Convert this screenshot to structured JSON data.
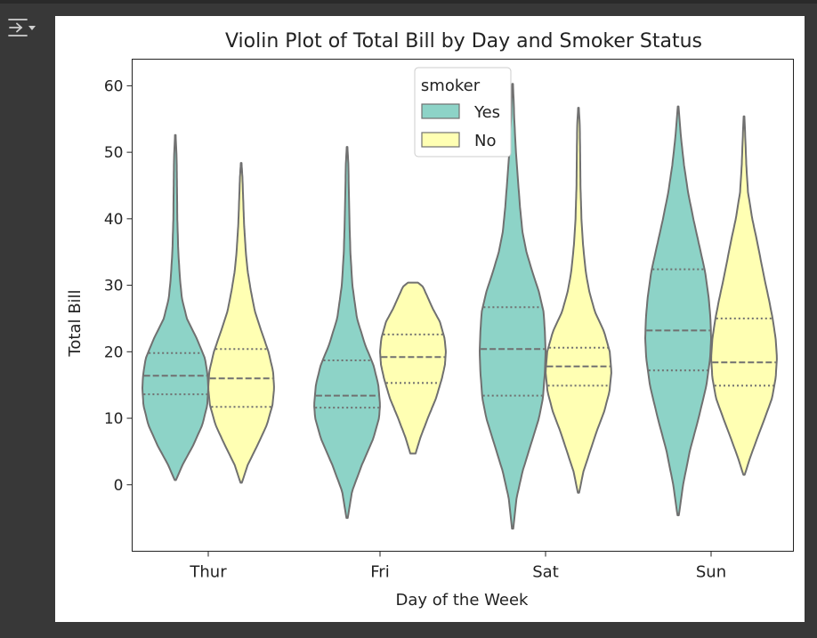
{
  "output_toggle": {
    "icon": "output-collapse-icon"
  },
  "colors": {
    "yes": "#8dd3c7",
    "no": "#ffffb3",
    "edge": "#707070",
    "page_bg": "#383838"
  },
  "chart_data": {
    "type": "violin",
    "title": "Violin Plot of Total Bill by Day and Smoker Status",
    "xlabel": "Day of the Week",
    "ylabel": "Total Bill",
    "categories": [
      "Thur",
      "Fri",
      "Sat",
      "Sun"
    ],
    "ylim": [
      -10,
      64
    ],
    "yticks": [
      0,
      10,
      20,
      30,
      40,
      50,
      60
    ],
    "grid": false,
    "legend": {
      "title": "smoker",
      "position": "upper-center"
    },
    "series": [
      {
        "name": "Yes",
        "color": "#8dd3c7",
        "violins": [
          {
            "category": "Thur",
            "min": 0.7,
            "max": 52.6,
            "q1": 13.6,
            "median": 16.4,
            "q3": 19.8,
            "profile": [
              [
                0.7,
                0.02
              ],
              [
                3,
                0.22
              ],
              [
                6,
                0.55
              ],
              [
                9,
                0.82
              ],
              [
                12,
                0.97
              ],
              [
                14.5,
                1.0
              ],
              [
                16.5,
                0.98
              ],
              [
                19,
                0.9
              ],
              [
                22,
                0.65
              ],
              [
                25,
                0.35
              ],
              [
                28,
                0.2
              ],
              [
                31,
                0.14
              ],
              [
                35,
                0.09
              ],
              [
                40,
                0.06
              ],
              [
                45,
                0.05
              ],
              [
                49,
                0.04
              ],
              [
                52.6,
                0.01
              ]
            ]
          },
          {
            "category": "Fri",
            "min": -5,
            "max": 50.8,
            "q1": 11.6,
            "median": 13.4,
            "q3": 18.7,
            "profile": [
              [
                -5,
                0.02
              ],
              [
                -1,
                0.15
              ],
              [
                3,
                0.45
              ],
              [
                7,
                0.8
              ],
              [
                10,
                0.97
              ],
              [
                12,
                1.0
              ],
              [
                15,
                0.95
              ],
              [
                18,
                0.8
              ],
              [
                21,
                0.55
              ],
              [
                25,
                0.3
              ],
              [
                30,
                0.16
              ],
              [
                35,
                0.1
              ],
              [
                40,
                0.07
              ],
              [
                45,
                0.05
              ],
              [
                48,
                0.04
              ],
              [
                50.8,
                0.01
              ]
            ]
          },
          {
            "category": "Sat",
            "min": -6.6,
            "max": 60.3,
            "q1": 13.4,
            "median": 20.4,
            "q3": 26.7,
            "profile": [
              [
                -6.6,
                0.02
              ],
              [
                -2,
                0.12
              ],
              [
                2,
                0.3
              ],
              [
                6,
                0.55
              ],
              [
                10,
                0.8
              ],
              [
                13,
                0.92
              ],
              [
                17,
                0.98
              ],
              [
                20,
                1.0
              ],
              [
                23,
                0.98
              ],
              [
                26,
                0.94
              ],
              [
                29,
                0.8
              ],
              [
                32,
                0.6
              ],
              [
                35,
                0.42
              ],
              [
                38,
                0.3
              ],
              [
                42,
                0.22
              ],
              [
                46,
                0.16
              ],
              [
                50,
                0.1
              ],
              [
                55,
                0.05
              ],
              [
                58,
                0.03
              ],
              [
                60.3,
                0.01
              ]
            ]
          },
          {
            "category": "Sun",
            "min": -4.6,
            "max": 56.9,
            "q1": 17.2,
            "median": 23.2,
            "q3": 32.4,
            "profile": [
              [
                -4.6,
                0.02
              ],
              [
                0,
                0.15
              ],
              [
                5,
                0.35
              ],
              [
                10,
                0.62
              ],
              [
                15,
                0.86
              ],
              [
                19,
                0.97
              ],
              [
                22,
                1.0
              ],
              [
                25,
                0.98
              ],
              [
                28,
                0.93
              ],
              [
                32,
                0.82
              ],
              [
                36,
                0.64
              ],
              [
                40,
                0.46
              ],
              [
                44,
                0.3
              ],
              [
                48,
                0.18
              ],
              [
                52,
                0.09
              ],
              [
                55,
                0.04
              ],
              [
                56.9,
                0.01
              ]
            ]
          }
        ]
      },
      {
        "name": "No",
        "color": "#ffffb3",
        "violins": [
          {
            "category": "Thur",
            "min": 0.3,
            "max": 48.4,
            "q1": 11.7,
            "median": 16.0,
            "q3": 20.4,
            "profile": [
              [
                0.3,
                0.02
              ],
              [
                3,
                0.2
              ],
              [
                6,
                0.5
              ],
              [
                9,
                0.78
              ],
              [
                12,
                0.95
              ],
              [
                14.5,
                1.0
              ],
              [
                17,
                0.97
              ],
              [
                20,
                0.83
              ],
              [
                23,
                0.62
              ],
              [
                26,
                0.42
              ],
              [
                29,
                0.3
              ],
              [
                32,
                0.2
              ],
              [
                35,
                0.14
              ],
              [
                39,
                0.09
              ],
              [
                43,
                0.06
              ],
              [
                46,
                0.04
              ],
              [
                48.4,
                0.01
              ]
            ]
          },
          {
            "category": "Fri",
            "min": 4.7,
            "max": 30.4,
            "q1": 15.3,
            "median": 19.2,
            "q3": 22.6,
            "profile": [
              [
                4.7,
                0.08
              ],
              [
                7,
                0.22
              ],
              [
                10,
                0.45
              ],
              [
                13,
                0.7
              ],
              [
                16,
                0.88
              ],
              [
                18,
                0.97
              ],
              [
                20,
                1.0
              ],
              [
                22,
                0.96
              ],
              [
                24.5,
                0.82
              ],
              [
                26.5,
                0.6
              ],
              [
                28.5,
                0.42
              ],
              [
                29.8,
                0.3
              ],
              [
                30.4,
                0.15
              ]
            ]
          },
          {
            "category": "Sat",
            "min": -1.2,
            "max": 56.7,
            "q1": 14.9,
            "median": 17.8,
            "q3": 20.6,
            "profile": [
              [
                -1.2,
                0.02
              ],
              [
                2,
                0.15
              ],
              [
                5,
                0.35
              ],
              [
                8,
                0.55
              ],
              [
                11,
                0.78
              ],
              [
                14,
                0.94
              ],
              [
                17,
                1.0
              ],
              [
                20,
                0.95
              ],
              [
                23,
                0.78
              ],
              [
                26,
                0.5
              ],
              [
                29,
                0.33
              ],
              [
                32,
                0.22
              ],
              [
                36,
                0.14
              ],
              [
                40,
                0.09
              ],
              [
                45,
                0.06
              ],
              [
                50,
                0.05
              ],
              [
                54,
                0.04
              ],
              [
                56.7,
                0.01
              ]
            ]
          },
          {
            "category": "Sun",
            "min": 1.5,
            "max": 55.4,
            "q1": 14.9,
            "median": 18.4,
            "q3": 25.0,
            "profile": [
              [
                1.5,
                0.02
              ],
              [
                4,
                0.18
              ],
              [
                7,
                0.4
              ],
              [
                10,
                0.63
              ],
              [
                13,
                0.85
              ],
              [
                16,
                0.96
              ],
              [
                19,
                1.0
              ],
              [
                22,
                0.96
              ],
              [
                25,
                0.87
              ],
              [
                28,
                0.75
              ],
              [
                31,
                0.62
              ],
              [
                34,
                0.5
              ],
              [
                37,
                0.38
              ],
              [
                40,
                0.25
              ],
              [
                44,
                0.12
              ],
              [
                48,
                0.07
              ],
              [
                52,
                0.04
              ],
              [
                55.4,
                0.01
              ]
            ]
          }
        ]
      }
    ]
  }
}
